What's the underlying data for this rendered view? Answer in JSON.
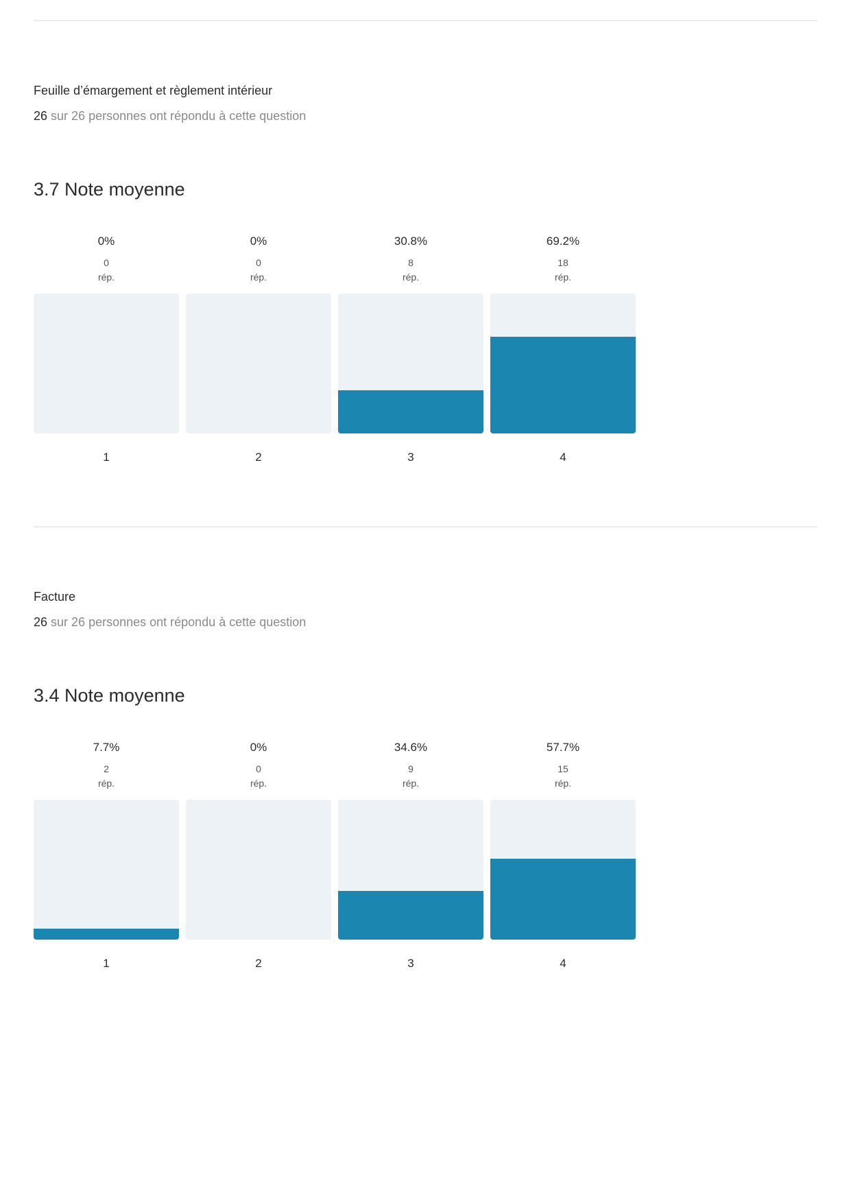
{
  "colors": {
    "bar_fill": "#1b87b0",
    "bar_track": "#edf2f6",
    "divider": "#ececec"
  },
  "questions": [
    {
      "title": "Feuille d’émargement et règlement intérieur",
      "answered": "26",
      "answered_rest": "sur 26 personnes ont répondu à cette question",
      "average_label": "3.7 Note moyenne",
      "unit_label": "rép."
    },
    {
      "title": "Facture",
      "answered": "26",
      "answered_rest": "sur 26 personnes ont répondu à cette question",
      "average_label": "3.4 Note moyenne",
      "unit_label": "rép."
    }
  ],
  "chart_data": [
    {
      "type": "bar",
      "categories": [
        "1",
        "2",
        "3",
        "4"
      ],
      "percent_labels": [
        "0%",
        "0%",
        "30.8%",
        "69.2%"
      ],
      "values": [
        0,
        0,
        30.8,
        69.2
      ],
      "counts": [
        0,
        0,
        8,
        18
      ],
      "count_unit": "rép.",
      "ylim": [
        0,
        100
      ],
      "xlabel": "",
      "ylabel": ""
    },
    {
      "type": "bar",
      "categories": [
        "1",
        "2",
        "3",
        "4"
      ],
      "percent_labels": [
        "7.7%",
        "0%",
        "34.6%",
        "57.7%"
      ],
      "values": [
        7.7,
        0,
        34.6,
        57.7
      ],
      "counts": [
        2,
        0,
        9,
        15
      ],
      "count_unit": "rép.",
      "ylim": [
        0,
        100
      ],
      "xlabel": "",
      "ylabel": ""
    }
  ]
}
